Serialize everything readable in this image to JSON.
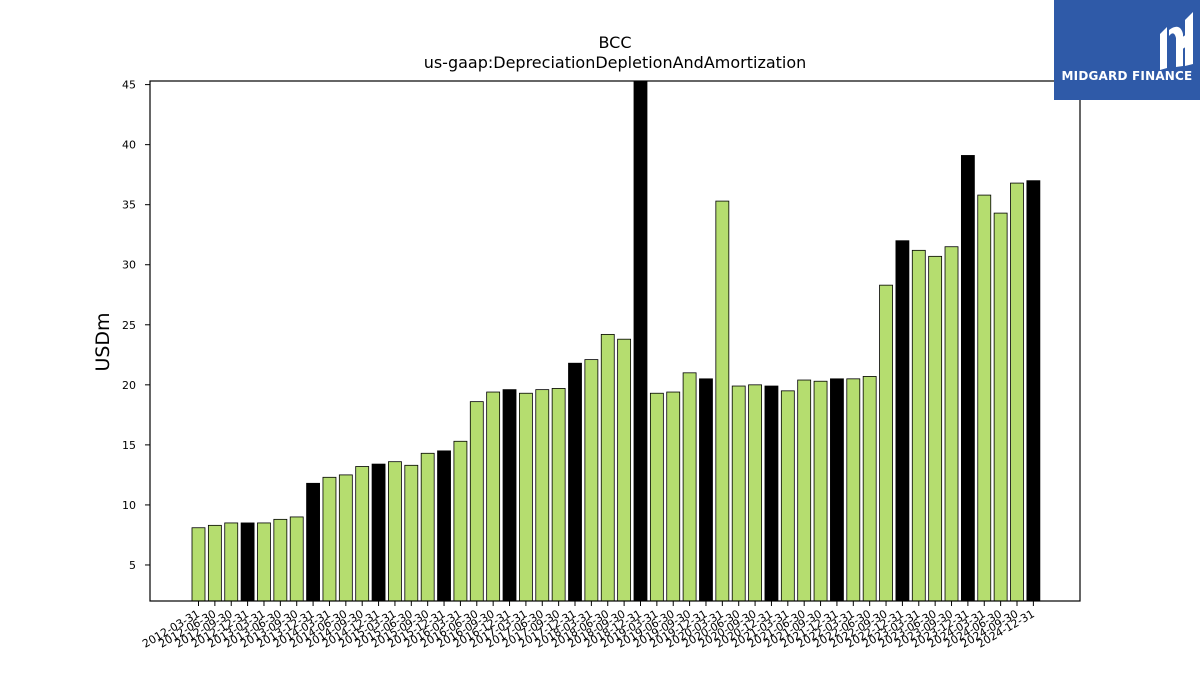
{
  "logo": {
    "brand": "MIDGARD FINANCE",
    "icon": "midgard-logo-icon",
    "bg_color": "#2f5aa8"
  },
  "chart_data": {
    "type": "bar",
    "title": "BCC",
    "subtitle": "us-gaap:DepreciationDepletionAndAmortization",
    "ylabel": "USDm",
    "xlabel": "",
    "ylim": [
      2.0,
      45.3
    ],
    "yticks": [
      5,
      10,
      15,
      20,
      25,
      30,
      35,
      40,
      45
    ],
    "grid": false,
    "colors": {
      "quarter": "#b5dd6f",
      "year_end": "#000000"
    },
    "categories": [
      "2012-03-31",
      "2012-06-30",
      "2012-09-30",
      "2012-12-31",
      "2013-03-31",
      "2013-06-30",
      "2013-09-30",
      "2013-12-31",
      "2014-03-31",
      "2014-06-30",
      "2014-09-30",
      "2014-12-31",
      "2015-03-31",
      "2015-06-30",
      "2015-09-30",
      "2015-12-31",
      "2016-03-31",
      "2016-06-30",
      "2016-09-30",
      "2016-12-31",
      "2017-03-31",
      "2017-06-30",
      "2017-09-30",
      "2017-12-31",
      "2018-03-31",
      "2018-06-30",
      "2018-09-30",
      "2018-12-31",
      "2019-03-31",
      "2019-06-30",
      "2019-09-30",
      "2019-12-31",
      "2020-03-31",
      "2020-06-30",
      "2020-09-30",
      "2020-12-31",
      "2021-03-31",
      "2021-06-30",
      "2021-09-30",
      "2021-12-31",
      "2022-03-31",
      "2022-06-30",
      "2022-09-30",
      "2022-12-31",
      "2023-03-31",
      "2023-06-30",
      "2023-09-30",
      "2023-12-31",
      "2024-03-31",
      "2024-06-30",
      "2024-09-30",
      "2024-12-31"
    ],
    "values": [
      8.1,
      8.3,
      8.5,
      8.5,
      8.5,
      8.8,
      9.0,
      11.8,
      12.3,
      12.5,
      13.2,
      13.4,
      13.6,
      13.3,
      14.3,
      14.5,
      15.3,
      18.6,
      19.4,
      19.6,
      19.3,
      19.6,
      19.7,
      21.8,
      22.1,
      24.2,
      23.8,
      45.3,
      19.3,
      19.4,
      21.0,
      20.5,
      35.3,
      19.9,
      20.0,
      19.9,
      19.5,
      20.4,
      20.3,
      20.5,
      20.5,
      20.7,
      28.3,
      32.0,
      31.2,
      30.7,
      31.5,
      39.1,
      35.8,
      34.3,
      36.8,
      37.0
    ]
  }
}
